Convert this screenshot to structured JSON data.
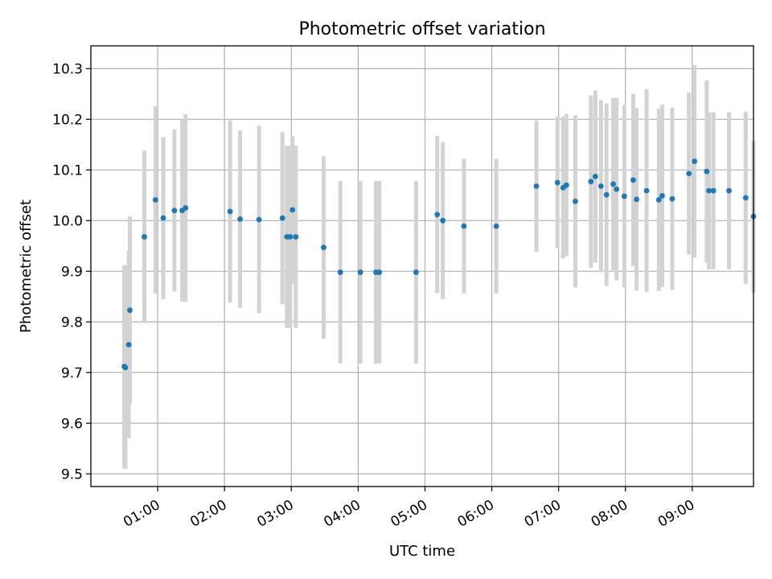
{
  "chart_data": {
    "type": "scatter",
    "title": "Photometric offset variation",
    "xlabel": "UTC time",
    "ylabel": "Photometric offset",
    "x_ticks": [
      "01:00",
      "02:00",
      "03:00",
      "04:00",
      "05:00",
      "06:00",
      "07:00",
      "08:00",
      "09:00"
    ],
    "y_ticks": [
      9.5,
      9.6,
      9.7,
      9.8,
      9.9,
      10.0,
      10.1,
      10.2,
      10.3
    ],
    "xlim": [
      "00:00",
      "09:55"
    ],
    "ylim": [
      9.475,
      10.345
    ],
    "grid": true,
    "marker_color": "#1f77b4",
    "errorbar_color": "#d3d3d3",
    "series": [
      {
        "x": [
          "00:30",
          "00:31",
          "00:34",
          "00:35",
          "00:48",
          "00:58",
          "01:05",
          "01:15",
          "01:22",
          "01:25",
          "02:05",
          "02:14",
          "02:31",
          "02:52",
          "03:01",
          "02:56",
          "02:59",
          "03:04",
          "03:29",
          "03:44",
          "04:02",
          "04:16",
          "04:19",
          "04:52",
          "05:11",
          "05:16",
          "05:35",
          "06:04",
          "06:40",
          "06:59",
          "07:04",
          "07:07",
          "07:15",
          "07:29",
          "07:33",
          "07:38",
          "07:43",
          "07:49",
          "07:52",
          "07:59",
          "08:07",
          "08:10",
          "08:19",
          "08:30",
          "08:33",
          "08:42",
          "08:57",
          "09:02",
          "09:13",
          "09:15",
          "09:19",
          "09:33",
          "09:48",
          "09:55"
        ],
        "y": [
          9.712,
          9.71,
          9.755,
          9.823,
          9.968,
          10.041,
          10.005,
          10.02,
          10.02,
          10.025,
          10.018,
          10.003,
          10.002,
          10.005,
          10.021,
          9.968,
          9.968,
          9.968,
          9.947,
          9.898,
          9.898,
          9.898,
          9.898,
          9.898,
          10.012,
          10.0,
          9.989,
          9.989,
          10.068,
          10.075,
          10.065,
          10.07,
          10.038,
          10.077,
          10.087,
          10.068,
          10.051,
          10.072,
          10.062,
          10.048,
          10.08,
          10.042,
          10.059,
          10.041,
          10.049,
          10.043,
          10.093,
          10.117,
          10.097,
          10.059,
          10.059,
          10.059,
          10.045,
          10.008
        ],
        "yerr": [
          0.2,
          0.2,
          0.185,
          0.185,
          0.17,
          0.185,
          0.16,
          0.16,
          0.18,
          0.185,
          0.18,
          0.175,
          0.185,
          0.17,
          0.145,
          0.18,
          0.18,
          0.18,
          0.18,
          0.18,
          0.18,
          0.18,
          0.18,
          0.18,
          0.155,
          0.155,
          0.133,
          0.133,
          0.13,
          0.13,
          0.14,
          0.14,
          0.17,
          0.17,
          0.17,
          0.17,
          0.18,
          0.17,
          0.18,
          0.18,
          0.17,
          0.18,
          0.2,
          0.18,
          0.18,
          0.18,
          0.16,
          0.19,
          0.18,
          0.155,
          0.155,
          0.155,
          0.17,
          0.15
        ]
      }
    ]
  }
}
